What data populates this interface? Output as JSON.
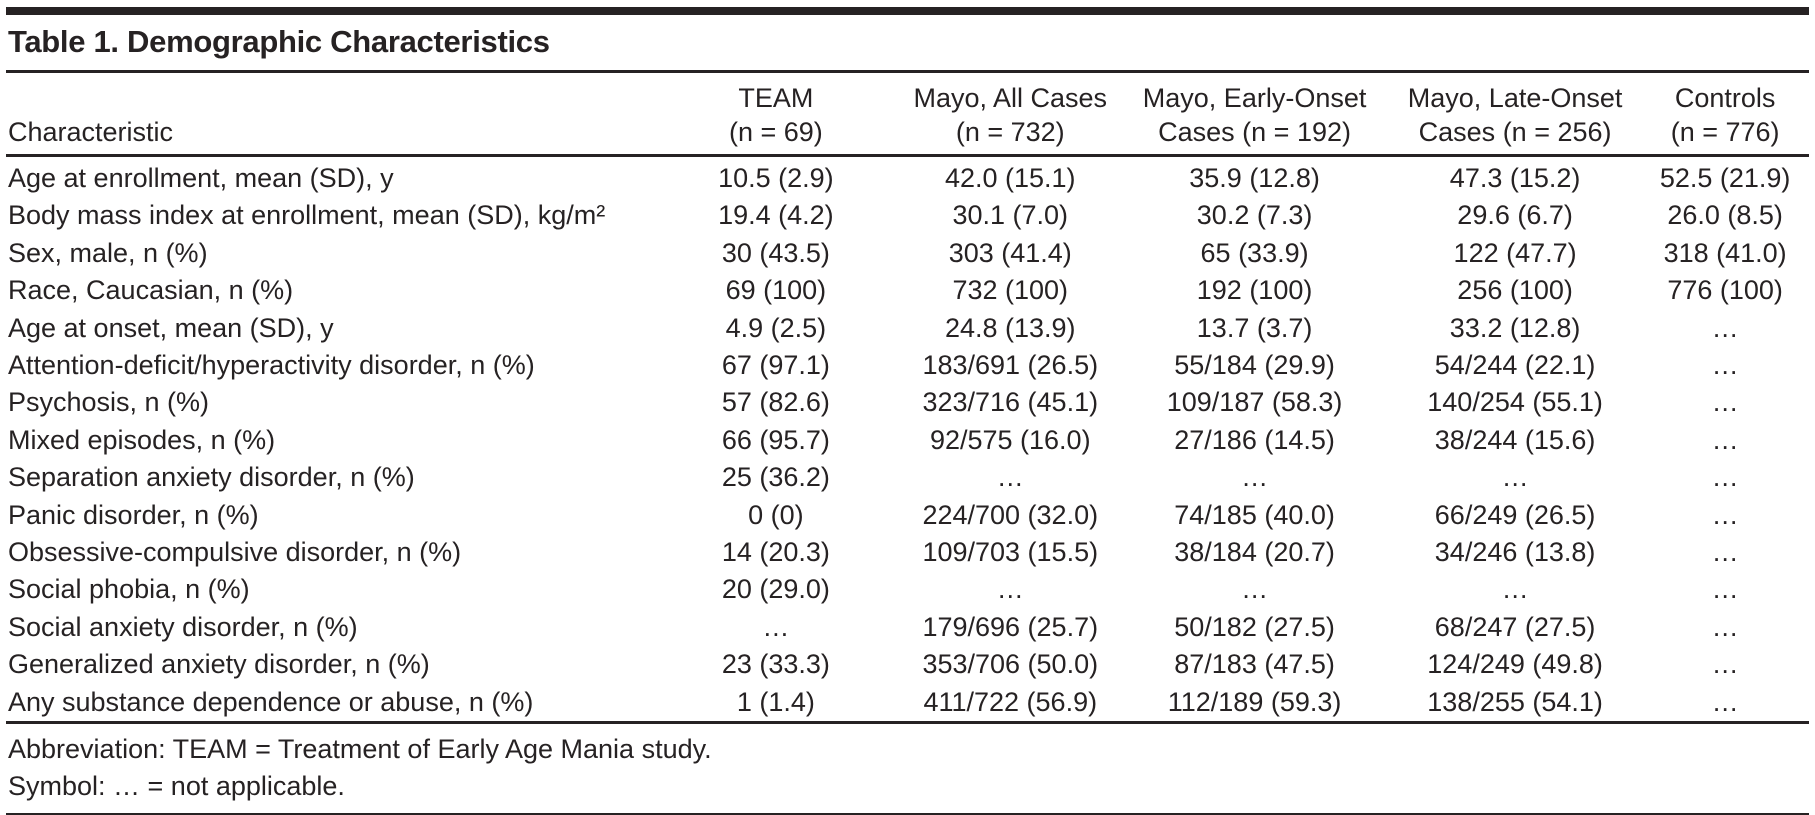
{
  "title": "Table 1. Demographic Characteristics",
  "table": {
    "characteristic_header": "Characteristic",
    "columns": [
      {
        "line1": "TEAM",
        "line2": "(n = 69)"
      },
      {
        "line1": "Mayo, All Cases",
        "line2": "(n = 732)"
      },
      {
        "line1": "Mayo, Early-Onset",
        "line2": "Cases (n = 192)"
      },
      {
        "line1": "Mayo, Late-Onset",
        "line2": "Cases (n = 256)"
      },
      {
        "line1": "Controls",
        "line2": "(n = 776)"
      }
    ],
    "rows": [
      {
        "label": "Age at enrollment, mean (SD), y",
        "values": [
          "10.5 (2.9)",
          "42.0 (15.1)",
          "35.9 (12.8)",
          "47.3 (15.2)",
          "52.5 (21.9)"
        ]
      },
      {
        "label": "Body mass index at enrollment, mean (SD), kg/m²",
        "values": [
          "19.4 (4.2)",
          "30.1 (7.0)",
          "30.2 (7.3)",
          "29.6 (6.7)",
          "26.0 (8.5)"
        ]
      },
      {
        "label": "Sex, male, n (%)",
        "values": [
          "30 (43.5)",
          "303 (41.4)",
          "65 (33.9)",
          "122 (47.7)",
          "318 (41.0)"
        ]
      },
      {
        "label": "Race, Caucasian, n (%)",
        "values": [
          "69 (100)",
          "732 (100)",
          "192 (100)",
          "256 (100)",
          "776 (100)"
        ]
      },
      {
        "label": "Age at onset, mean (SD), y",
        "values": [
          "4.9 (2.5)",
          "24.8 (13.9)",
          "13.7 (3.7)",
          "33.2 (12.8)",
          "…"
        ]
      },
      {
        "label": "Attention-deficit/hyperactivity disorder, n (%)",
        "values": [
          "67 (97.1)",
          "183/691 (26.5)",
          "55/184 (29.9)",
          "54/244 (22.1)",
          "…"
        ]
      },
      {
        "label": "Psychosis, n (%)",
        "values": [
          "57 (82.6)",
          "323/716 (45.1)",
          "109/187 (58.3)",
          "140/254 (55.1)",
          "…"
        ]
      },
      {
        "label": "Mixed episodes, n (%)",
        "values": [
          "66 (95.7)",
          "92/575 (16.0)",
          "27/186 (14.5)",
          "38/244 (15.6)",
          "…"
        ]
      },
      {
        "label": "Separation anxiety disorder, n (%)",
        "values": [
          "25 (36.2)",
          "…",
          "…",
          "…",
          "…"
        ]
      },
      {
        "label": "Panic disorder, n (%)",
        "values": [
          "0 (0)",
          "224/700 (32.0)",
          "74/185 (40.0)",
          "66/249 (26.5)",
          "…"
        ]
      },
      {
        "label": "Obsessive-compulsive disorder, n (%)",
        "values": [
          "14 (20.3)",
          "109/703 (15.5)",
          "38/184 (20.7)",
          "34/246 (13.8)",
          "…"
        ]
      },
      {
        "label": "Social phobia, n (%)",
        "values": [
          "20 (29.0)",
          "…",
          "…",
          "…",
          "…"
        ]
      },
      {
        "label": "Social anxiety disorder, n (%)",
        "values": [
          "…",
          "179/696 (25.7)",
          "50/182 (27.5)",
          "68/247 (27.5)",
          "…"
        ]
      },
      {
        "label": "Generalized anxiety disorder, n (%)",
        "values": [
          "23 (33.3)",
          "353/706 (50.0)",
          "87/183 (47.5)",
          "124/249 (49.8)",
          "…"
        ]
      },
      {
        "label": "Any substance dependence or abuse, n (%)",
        "values": [
          "1 (1.4)",
          "411/722 (56.9)",
          "112/189 (59.3)",
          "138/255 (54.1)",
          "…"
        ]
      }
    ]
  },
  "footnotes": [
    "Abbreviation: TEAM = Treatment of Early Age Mania study.",
    "Symbol: … = not applicable."
  ],
  "colors": {
    "text": "#262223",
    "rule": "#262223",
    "background": "#ffffff"
  }
}
